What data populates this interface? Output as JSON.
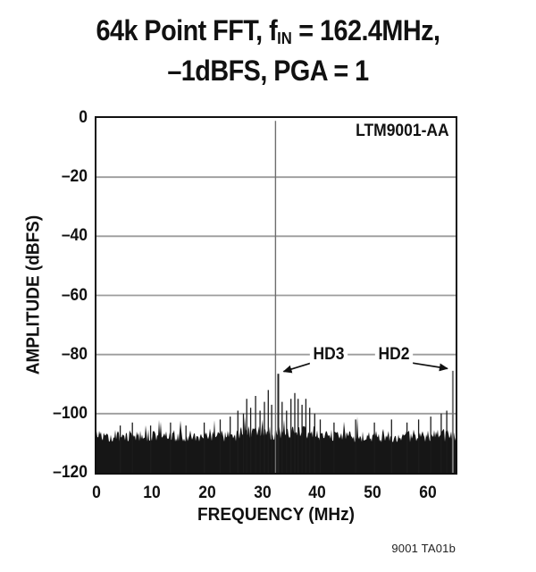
{
  "title": {
    "line1_pre": "64k Point FFT, f",
    "line1_sub": "IN",
    "line1_post": " = 162.4MHz,",
    "line2": "–1dBFS, PGA = 1"
  },
  "note": "9001 TA01b",
  "chart_data": {
    "type": "line",
    "subtype": "fft-spectrum",
    "title": "64k Point FFT, fIN = 162.4MHz, –1dBFS, PGA = 1",
    "xlabel": "FREQUENCY (MHz)",
    "ylabel": "AMPLITUDE (dBFS)",
    "device_label": "LTM9001-AA",
    "xlim": [
      0,
      65
    ],
    "ylim": [
      -120,
      0
    ],
    "xticks": [
      0,
      10,
      20,
      30,
      40,
      50,
      60
    ],
    "yticks": [
      0,
      -20,
      -40,
      -60,
      -80,
      -100,
      -120
    ],
    "xticklabels": [
      "0",
      "10",
      "20",
      "30",
      "40",
      "50",
      "60"
    ],
    "yticklabels": [
      "0",
      "–20",
      "–40",
      "–60",
      "–80",
      "–100",
      "–120"
    ],
    "grid": {
      "horizontal_every_db": 20,
      "vertical": false,
      "color": "#9c9c9c"
    },
    "fundamental": {
      "mhz": 32.4,
      "dbfs": -1,
      "color": "#6e6e6e"
    },
    "harmonics": [
      {
        "name": "HD3",
        "mhz": 32.9,
        "dbfs": -86.5,
        "color": "#222222",
        "label_mhz": 42.0,
        "label_dbfs": -80
      },
      {
        "name": "HD2",
        "mhz": 64.5,
        "dbfs": -85.5,
        "color": "#777777",
        "label_mhz": 53.8,
        "label_dbfs": -80
      }
    ],
    "noise_floor": {
      "mean_dbfs": -107.5,
      "jitter_db": 2.2,
      "floor_dbfs": -120,
      "seed": 9001
    },
    "spurs": [
      [
        4.3,
        -104
      ],
      [
        6.5,
        -103
      ],
      [
        9.8,
        -104
      ],
      [
        13.4,
        -103
      ],
      [
        16.2,
        -104
      ],
      [
        19.5,
        -103
      ],
      [
        22.4,
        -102
      ],
      [
        24.2,
        -101
      ],
      [
        25.6,
        -99
      ],
      [
        26.6,
        -100
      ],
      [
        27.2,
        -95
      ],
      [
        27.9,
        -98
      ],
      [
        28.8,
        -94
      ],
      [
        29.6,
        -99
      ],
      [
        30.4,
        -96
      ],
      [
        31.1,
        -92
      ],
      [
        31.7,
        -97
      ],
      [
        33.6,
        -96
      ],
      [
        34.4,
        -99
      ],
      [
        35.2,
        -95
      ],
      [
        35.9,
        -93
      ],
      [
        36.5,
        -95
      ],
      [
        37.2,
        -97
      ],
      [
        37.9,
        -95
      ],
      [
        38.6,
        -98
      ],
      [
        39.5,
        -100
      ],
      [
        40.5,
        -102
      ],
      [
        43.0,
        -103
      ],
      [
        46.9,
        -102
      ],
      [
        50.3,
        -103
      ],
      [
        53.4,
        -102
      ],
      [
        56.2,
        -103
      ],
      [
        58.3,
        -102
      ],
      [
        60.5,
        -101
      ],
      [
        62.4,
        -100
      ],
      [
        63.4,
        -99
      ]
    ]
  }
}
